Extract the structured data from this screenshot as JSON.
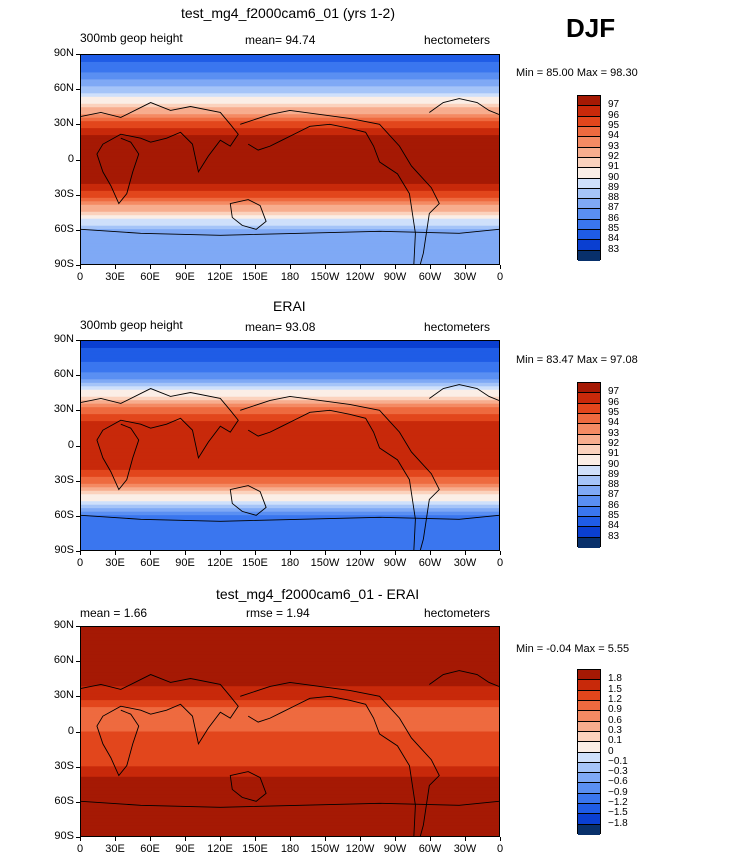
{
  "season": "DJF",
  "x_ticks": [
    "0",
    "30E",
    "60E",
    "90E",
    "120E",
    "150E",
    "180",
    "150W",
    "120W",
    "90W",
    "60W",
    "30W",
    "0"
  ],
  "y_ticks": [
    "90N",
    "60N",
    "30N",
    "0",
    "30S",
    "60S",
    "90S"
  ],
  "colors": {
    "scale": [
      "#08306b",
      "#0a3fd1",
      "#1f5ce6",
      "#3a76ef",
      "#5a8ff2",
      "#7fa9f5",
      "#a5c4f8",
      "#cfe0fb",
      "#fbeee6",
      "#fbd2bd",
      "#f7ad8e",
      "#f48a63",
      "#ee6a3f",
      "#e2461c",
      "#c8290a",
      "#a51904"
    ],
    "outline": "#000000"
  },
  "chart_data": [
    {
      "type": "heatmap",
      "title": "test_mg4_f2000cam6_01 (yrs 1-2)",
      "left_label": "300mb geop height",
      "center_label": "mean=  94.74",
      "right_label": "hectometers",
      "minmax": "Min =  85.00 Max =  98.30",
      "mean": 94.74,
      "min": 85.0,
      "max": 98.3,
      "levels": [
        "97",
        "96",
        "95",
        "94",
        "93",
        "92",
        "91",
        "90",
        "89",
        "88",
        "87",
        "86",
        "85",
        "84",
        "83"
      ],
      "xlim": [
        0,
        360
      ],
      "ylim": [
        -90,
        90
      ],
      "zonal_profile": [
        [
          90,
          84.5
        ],
        [
          75,
          86.0
        ],
        [
          60,
          88.5
        ],
        [
          50,
          90.5
        ],
        [
          40,
          93.0
        ],
        [
          30,
          95.5
        ],
        [
          20,
          97.0
        ],
        [
          0,
          97.5
        ],
        [
          -20,
          97.0
        ],
        [
          -30,
          95.5
        ],
        [
          -40,
          93.0
        ],
        [
          -50,
          90.5
        ],
        [
          -60,
          88.0
        ],
        [
          -75,
          87.5
        ],
        [
          -90,
          87.5
        ]
      ]
    },
    {
      "type": "heatmap",
      "title": "ERAI",
      "left_label": "300mb geop height",
      "center_label": "mean=  93.08",
      "right_label": "hectometers",
      "minmax": "Min =  83.47 Max =  97.08",
      "mean": 93.08,
      "min": 83.47,
      "max": 97.08,
      "levels": [
        "97",
        "96",
        "95",
        "94",
        "93",
        "92",
        "91",
        "90",
        "89",
        "88",
        "87",
        "86",
        "85",
        "84",
        "83"
      ],
      "xlim": [
        0,
        360
      ],
      "ylim": [
        -90,
        90
      ],
      "zonal_profile": [
        [
          90,
          83.5
        ],
        [
          75,
          84.5
        ],
        [
          60,
          86.5
        ],
        [
          50,
          89.0
        ],
        [
          40,
          92.0
        ],
        [
          30,
          94.5
        ],
        [
          20,
          96.0
        ],
        [
          0,
          96.3
        ],
        [
          -20,
          96.0
        ],
        [
          -30,
          94.5
        ],
        [
          -40,
          92.0
        ],
        [
          -50,
          89.0
        ],
        [
          -60,
          86.0
        ],
        [
          -75,
          85.5
        ],
        [
          -90,
          85.5
        ]
      ]
    },
    {
      "type": "heatmap",
      "title": "test_mg4_f2000cam6_01 - ERAI",
      "left_label": "mean =    1.66",
      "center_label": "rmse =    1.94",
      "right_label": "hectometers",
      "minmax": "Min =  -0.04 Max =   5.55",
      "mean": 1.66,
      "rmse": 1.94,
      "min": -0.04,
      "max": 5.55,
      "levels": [
        "1.8",
        "1.5",
        "1.2",
        "0.9",
        "0.6",
        "0.3",
        "0.1",
        "0",
        "−0.1",
        "−0.3",
        "−0.6",
        "−0.9",
        "−1.2",
        "−1.5",
        "−1.8"
      ],
      "xlim": [
        0,
        360
      ],
      "ylim": [
        -90,
        90
      ],
      "zonal_profile": [
        [
          90,
          2.2
        ],
        [
          75,
          2.0
        ],
        [
          60,
          1.8
        ],
        [
          45,
          1.9
        ],
        [
          30,
          1.6
        ],
        [
          15,
          1.0
        ],
        [
          0,
          1.2
        ],
        [
          -15,
          1.3
        ],
        [
          -30,
          1.5
        ],
        [
          -45,
          2.0
        ],
        [
          -60,
          2.1
        ],
        [
          -75,
          2.3
        ],
        [
          -90,
          2.4
        ]
      ]
    }
  ]
}
